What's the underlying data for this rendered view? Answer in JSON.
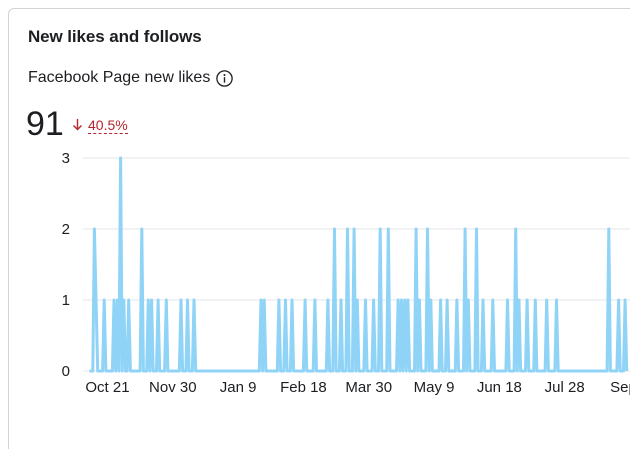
{
  "card": {
    "title": "New likes and follows",
    "metric_label": "Facebook Page new likes",
    "info_icon": "info-circle-icon",
    "total": "91",
    "change_direction_icon": "arrow-down-icon",
    "change_pct": "40.5%"
  },
  "colors": {
    "line": "#8fd3f7",
    "grid": "#e4e6eb",
    "negative": "#b3262e"
  },
  "chart_data": {
    "type": "line",
    "title": "",
    "xlabel": "",
    "ylabel": "",
    "ylim": [
      0,
      3
    ],
    "yticks": [
      "0",
      "1",
      "2",
      "3"
    ],
    "xticks": [
      {
        "label": "Oct 21",
        "day": 8
      },
      {
        "label": "Nov 30",
        "day": 48
      },
      {
        "label": "Jan 9",
        "day": 88
      },
      {
        "label": "Feb 18",
        "day": 128
      },
      {
        "label": "Mar 30",
        "day": 168
      },
      {
        "label": "May 9",
        "day": 208
      },
      {
        "label": "Jun 18",
        "day": 248
      },
      {
        "label": "Jul 28",
        "day": 288
      },
      {
        "label": "Sep",
        "day": 324
      }
    ],
    "x_range": [
      -7,
      328
    ],
    "grid": true,
    "legend": "none",
    "series": [
      {
        "values": [
          [
            -3,
            0
          ],
          [
            -1,
            0
          ],
          [
            0,
            2
          ],
          [
            2,
            0
          ],
          [
            5,
            0
          ],
          [
            6,
            1
          ],
          [
            7,
            0
          ],
          [
            11,
            0
          ],
          [
            12,
            1
          ],
          [
            13,
            0
          ],
          [
            14,
            1
          ],
          [
            15,
            0
          ],
          [
            16,
            3
          ],
          [
            17,
            0
          ],
          [
            18,
            1
          ],
          [
            19,
            0
          ],
          [
            20,
            0
          ],
          [
            21,
            1
          ],
          [
            22,
            0
          ],
          [
            24,
            0
          ],
          [
            28,
            0
          ],
          [
            29,
            2
          ],
          [
            30,
            0
          ],
          [
            32,
            0
          ],
          [
            33,
            1
          ],
          [
            34,
            0
          ],
          [
            35,
            1
          ],
          [
            36,
            0
          ],
          [
            38,
            0
          ],
          [
            39,
            1
          ],
          [
            40,
            0
          ],
          [
            43,
            0
          ],
          [
            44,
            1
          ],
          [
            45,
            0
          ],
          [
            52,
            0
          ],
          [
            53,
            1
          ],
          [
            54,
            0
          ],
          [
            56,
            0
          ],
          [
            57,
            1
          ],
          [
            58,
            0
          ],
          [
            60,
            0
          ],
          [
            61,
            1
          ],
          [
            62,
            0
          ],
          [
            77,
            0
          ],
          [
            101,
            0
          ],
          [
            102,
            1
          ],
          [
            103,
            0
          ],
          [
            104,
            1
          ],
          [
            105,
            0
          ],
          [
            112,
            0
          ],
          [
            113,
            1
          ],
          [
            114,
            0
          ],
          [
            116,
            0
          ],
          [
            117,
            1
          ],
          [
            118,
            0
          ],
          [
            120,
            0
          ],
          [
            121,
            1
          ],
          [
            122,
            0
          ],
          [
            128,
            0
          ],
          [
            129,
            1
          ],
          [
            130,
            0
          ],
          [
            134,
            0
          ],
          [
            135,
            1
          ],
          [
            136,
            0
          ],
          [
            142,
            0
          ],
          [
            143,
            1
          ],
          [
            144,
            0
          ],
          [
            146,
            0
          ],
          [
            147,
            2
          ],
          [
            148,
            0
          ],
          [
            150,
            0
          ],
          [
            151,
            1
          ],
          [
            152,
            0
          ],
          [
            154,
            0
          ],
          [
            155,
            2
          ],
          [
            156,
            0
          ],
          [
            158,
            0
          ],
          [
            159,
            2
          ],
          [
            160,
            0
          ],
          [
            161,
            1
          ],
          [
            162,
            0
          ],
          [
            165,
            0
          ],
          [
            166,
            1
          ],
          [
            167,
            0
          ],
          [
            170,
            0
          ],
          [
            171,
            1
          ],
          [
            172,
            0
          ],
          [
            174,
            0
          ],
          [
            175,
            2
          ],
          [
            176,
            0
          ],
          [
            179,
            0
          ],
          [
            180,
            2
          ],
          [
            181,
            0
          ],
          [
            185,
            0
          ],
          [
            186,
            1
          ],
          [
            187,
            0
          ],
          [
            188,
            1
          ],
          [
            189,
            0
          ],
          [
            190,
            1
          ],
          [
            191,
            0
          ],
          [
            192,
            1
          ],
          [
            193,
            0
          ],
          [
            196,
            0
          ],
          [
            197,
            2
          ],
          [
            198,
            0
          ],
          [
            199,
            1
          ],
          [
            200,
            0
          ],
          [
            203,
            0
          ],
          [
            204,
            2
          ],
          [
            205,
            0
          ],
          [
            206,
            1
          ],
          [
            207,
            0
          ],
          [
            211,
            0
          ],
          [
            212,
            1
          ],
          [
            213,
            0
          ],
          [
            215,
            0
          ],
          [
            216,
            1
          ],
          [
            217,
            0
          ],
          [
            221,
            0
          ],
          [
            222,
            1
          ],
          [
            223,
            0
          ],
          [
            226,
            0
          ],
          [
            227,
            2
          ],
          [
            228,
            0
          ],
          [
            229,
            1
          ],
          [
            230,
            0
          ],
          [
            233,
            0
          ],
          [
            234,
            2
          ],
          [
            235,
            0
          ],
          [
            237,
            0
          ],
          [
            238,
            1
          ],
          [
            239,
            0
          ],
          [
            243,
            0
          ],
          [
            244,
            1
          ],
          [
            245,
            0
          ],
          [
            252,
            0
          ],
          [
            253,
            1
          ],
          [
            254,
            0
          ],
          [
            257,
            0
          ],
          [
            258,
            2
          ],
          [
            259,
            0
          ],
          [
            260,
            1
          ],
          [
            261,
            0
          ],
          [
            264,
            0
          ],
          [
            265,
            1
          ],
          [
            266,
            0
          ],
          [
            269,
            0
          ],
          [
            270,
            1
          ],
          [
            271,
            0
          ],
          [
            276,
            0
          ],
          [
            277,
            1
          ],
          [
            278,
            0
          ],
          [
            282,
            0
          ],
          [
            283,
            1
          ],
          [
            284,
            0
          ],
          [
            314,
            0
          ],
          [
            315,
            2
          ],
          [
            316,
            0
          ],
          [
            320,
            0
          ],
          [
            321,
            1
          ],
          [
            322,
            0
          ],
          [
            324,
            0
          ],
          [
            325,
            1
          ],
          [
            326,
            0
          ]
        ]
      }
    ]
  }
}
